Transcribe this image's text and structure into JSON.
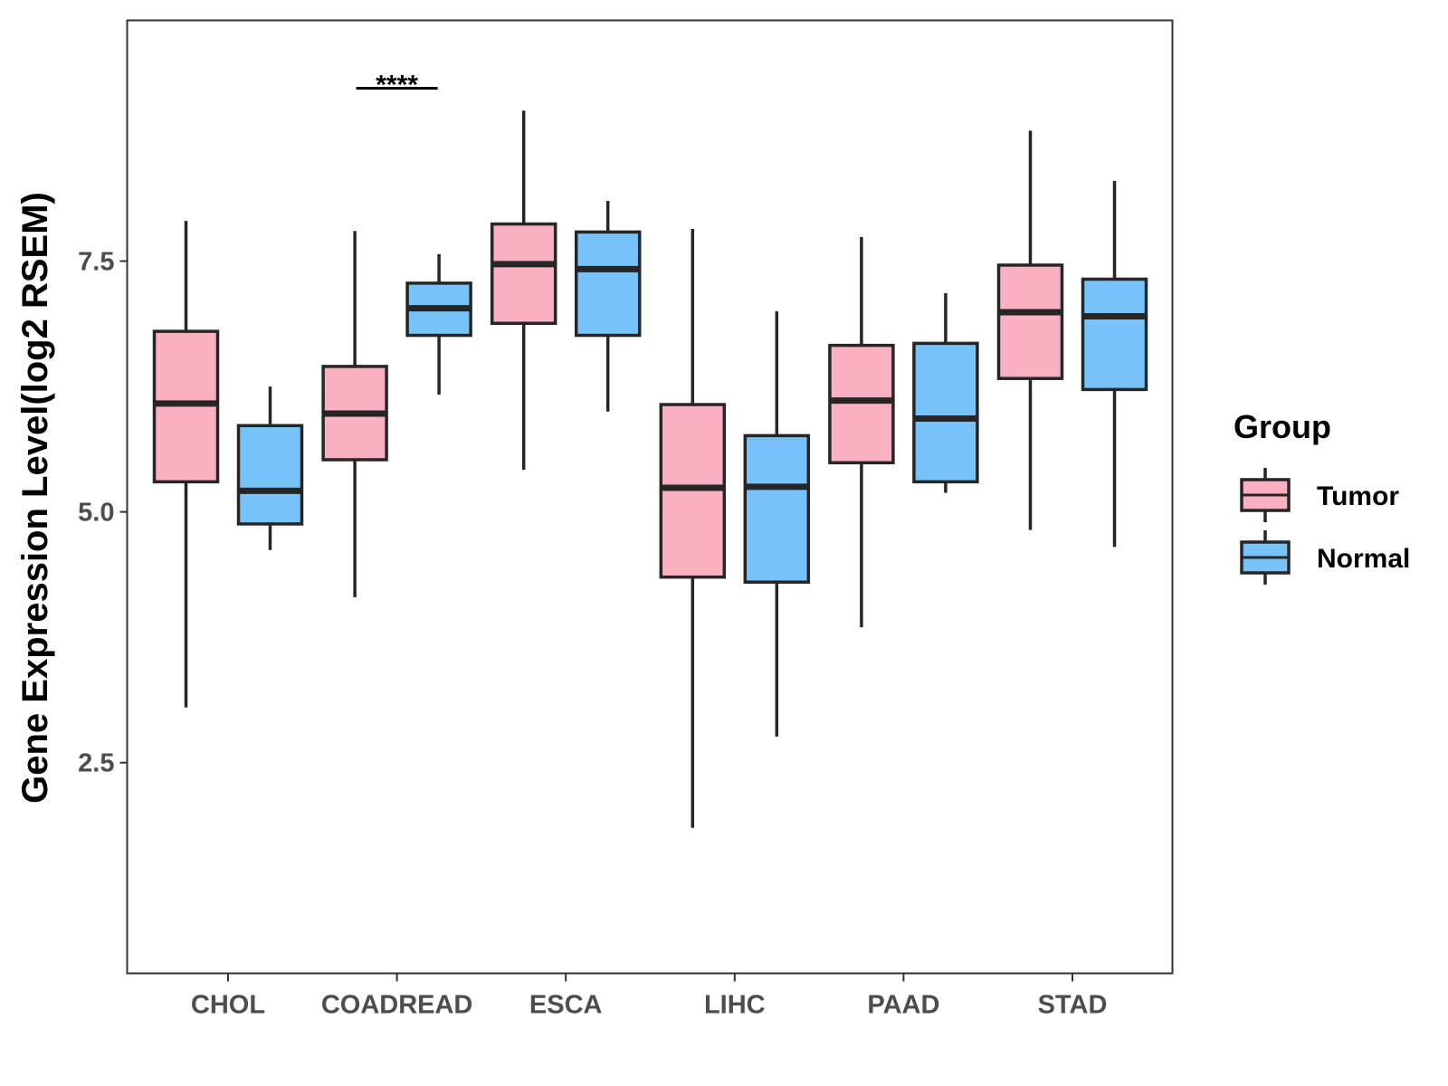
{
  "chart_data": {
    "type": "boxplot",
    "title": "",
    "xlabel": "",
    "ylabel": "Gene Expression Level(log2 RSEM)",
    "ylim": [
      0.4,
      9.9
    ],
    "yticks": [
      2.5,
      5.0,
      7.5
    ],
    "ytick_labels": [
      "2.5",
      "5.0",
      "7.5"
    ],
    "categories": [
      "CHOL",
      "COADREAD",
      "ESCA",
      "LIHC",
      "PAAD",
      "STAD"
    ],
    "legend": {
      "title": "Group",
      "position": "right",
      "entries": [
        "Tumor",
        "Normal"
      ]
    },
    "series": [
      {
        "name": "Tumor",
        "color": "#FBB0C2",
        "boxes": [
          {
            "min": 3.05,
            "q1": 5.3,
            "median": 6.08,
            "q3": 6.8,
            "max": 7.9
          },
          {
            "min": 4.15,
            "q1": 5.52,
            "median": 5.98,
            "q3": 6.45,
            "max": 7.8
          },
          {
            "min": 5.42,
            "q1": 6.88,
            "median": 7.47,
            "q3": 7.87,
            "max": 9.0
          },
          {
            "min": 1.85,
            "q1": 4.35,
            "median": 5.24,
            "q3": 6.07,
            "max": 7.82
          },
          {
            "min": 3.85,
            "q1": 5.49,
            "median": 6.11,
            "q3": 6.66,
            "max": 7.74
          },
          {
            "min": 4.82,
            "q1": 6.33,
            "median": 6.99,
            "q3": 7.46,
            "max": 8.8
          }
        ]
      },
      {
        "name": "Normal",
        "color": "#76C2F9",
        "boxes": [
          {
            "min": 4.62,
            "q1": 4.88,
            "median": 5.21,
            "q3": 5.86,
            "max": 6.25
          },
          {
            "min": 6.17,
            "q1": 6.76,
            "median": 7.03,
            "q3": 7.28,
            "max": 7.57
          },
          {
            "min": 6.0,
            "q1": 6.76,
            "median": 7.42,
            "q3": 7.79,
            "max": 8.1
          },
          {
            "min": 2.76,
            "q1": 4.3,
            "median": 5.25,
            "q3": 5.76,
            "max": 7.0
          },
          {
            "min": 5.19,
            "q1": 5.3,
            "median": 5.93,
            "q3": 6.68,
            "max": 7.18
          },
          {
            "min": 4.65,
            "q1": 6.22,
            "median": 6.95,
            "q3": 7.32,
            "max": 8.3
          }
        ]
      }
    ],
    "annotations": [
      {
        "category": "COADREAD",
        "label": "****",
        "y": 9.25
      }
    ]
  }
}
